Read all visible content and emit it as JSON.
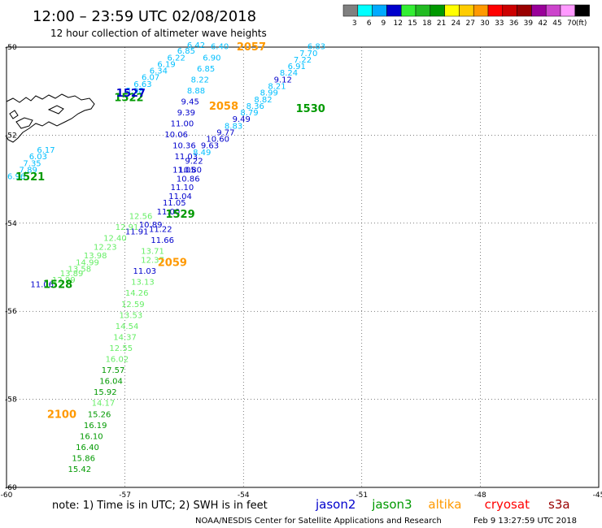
{
  "header": {
    "title": "12:00 – 23:59 UTC 02/08/2018",
    "subtitle": "12 hour collection of altimeter wave heights"
  },
  "colorbar": {
    "colors": [
      "#808080",
      "#00ffff",
      "#00aaff",
      "#0000cc",
      "#33ee33",
      "#22bb22",
      "#009900",
      "#ffff00",
      "#ffcc00",
      "#ff9900",
      "#ff0000",
      "#cc0000",
      "#990000",
      "#990099",
      "#cc44cc",
      "#ff99ff",
      "#000000"
    ],
    "labels": [
      "3",
      "6",
      "9",
      "12",
      "15",
      "18",
      "21",
      "24",
      "27",
      "30",
      "33",
      "36",
      "39",
      "42",
      "45",
      "70",
      "(ft)"
    ]
  },
  "axes": {
    "x_ticks": [
      -60,
      -57,
      -54,
      -51,
      -48,
      -45
    ],
    "y_ticks": [
      -50,
      -52,
      -54,
      -56,
      -58,
      -60
    ],
    "x_tick_labels": [
      "-60",
      "-57",
      "-54",
      "-51",
      "-48",
      "-45"
    ],
    "y_tick_labels": [
      "-50",
      "-52",
      "-54",
      "-56",
      "-58",
      "-60"
    ]
  },
  "chart_data": {
    "type": "scatter",
    "xlim": [
      -60,
      -45
    ],
    "ylim": [
      -60,
      -50
    ],
    "grid": true,
    "series": [
      {
        "name": "jason2",
        "color": "#0000cc"
      },
      {
        "name": "jason3",
        "color": "#009900"
      },
      {
        "name": "altika",
        "color": "#ff9900"
      },
      {
        "name": "cryosat",
        "color": "#ff0000"
      },
      {
        "name": "s3a",
        "color": "#990000"
      }
    ],
    "passes": [
      {
        "id": "1521",
        "color": "#009900",
        "lon": -59.4,
        "lat": -52.95
      },
      {
        "id": "1522",
        "color": "#009900",
        "lon": -56.9,
        "lat": -51.15
      },
      {
        "id": "1527",
        "color": "#0000cc",
        "lon": -56.85,
        "lat": -51.05
      },
      {
        "id": "1528",
        "color": "#009900",
        "lon": -58.7,
        "lat": -55.4
      },
      {
        "id": "1529",
        "color": "#009900",
        "lon": -55.6,
        "lat": -53.8
      },
      {
        "id": "1530",
        "color": "#009900",
        "lon": -52.3,
        "lat": -51.4
      },
      {
        "id": "2057",
        "color": "#ff9900",
        "lon": -53.8,
        "lat": -50.0
      },
      {
        "id": "2058",
        "color": "#ff9900",
        "lon": -54.5,
        "lat": -51.35
      },
      {
        "id": "2059",
        "color": "#ff9900",
        "lon": -55.8,
        "lat": -54.9
      },
      {
        "id": "2100",
        "color": "#ff9900",
        "lon": -58.6,
        "lat": -58.35
      }
    ],
    "points": [
      {
        "lon": -54.6,
        "lat": -50.05,
        "v": "6.40",
        "c": "#00bfff"
      },
      {
        "lon": -54.8,
        "lat": -50.3,
        "v": "6.90",
        "c": "#00bfff"
      },
      {
        "lon": -54.95,
        "lat": -50.55,
        "v": "6.85",
        "c": "#00bfff"
      },
      {
        "lon": -55.1,
        "lat": -50.8,
        "v": "8.22",
        "c": "#00bfff"
      },
      {
        "lon": -55.2,
        "lat": -51.05,
        "v": "8.88",
        "c": "#00bfff"
      },
      {
        "lon": -55.35,
        "lat": -51.3,
        "v": "9.45",
        "c": "#0000cc"
      },
      {
        "lon": -55.45,
        "lat": -51.55,
        "v": "9.39",
        "c": "#0000cc"
      },
      {
        "lon": -55.55,
        "lat": -51.8,
        "v": "11.00",
        "c": "#0000cc"
      },
      {
        "lon": -55.7,
        "lat": -52.05,
        "v": "10.06",
        "c": "#0000cc"
      },
      {
        "lon": -55.5,
        "lat": -52.3,
        "v": "10.36",
        "c": "#0000cc"
      },
      {
        "lon": -55.45,
        "lat": -52.55,
        "v": "11.03",
        "c": "#0000cc"
      },
      {
        "lon": -55.5,
        "lat": -52.85,
        "v": "11.05",
        "c": "#0000cc"
      },
      {
        "lon": -55.4,
        "lat": -53.05,
        "v": "10.86",
        "c": "#0000cc"
      },
      {
        "lon": -55.55,
        "lat": -53.25,
        "v": "11.10",
        "c": "#0000cc"
      },
      {
        "lon": -55.6,
        "lat": -53.45,
        "v": "11.04",
        "c": "#0000cc"
      },
      {
        "lon": -55.75,
        "lat": -53.6,
        "v": "11.05",
        "c": "#0000cc"
      },
      {
        "lon": -55.9,
        "lat": -53.8,
        "v": "11.00",
        "c": "#0000cc"
      },
      {
        "lon": -56.35,
        "lat": -54.1,
        "v": "10.89",
        "c": "#0000cc"
      },
      {
        "lon": -56.1,
        "lat": -54.2,
        "v": "11.22",
        "c": "#0000cc"
      },
      {
        "lon": -56.7,
        "lat": -54.25,
        "v": "11.91",
        "c": "#0000cc"
      },
      {
        "lon": -56.05,
        "lat": -54.45,
        "v": "11.66",
        "c": "#0000cc"
      },
      {
        "lon": -56.3,
        "lat": -54.7,
        "v": "13.71",
        "c": "#66ee66"
      },
      {
        "lon": -56.3,
        "lat": -54.9,
        "v": "12.37",
        "c": "#66ee66"
      },
      {
        "lon": -56.5,
        "lat": -55.15,
        "v": "11.03",
        "c": "#0000cc"
      },
      {
        "lon": -56.55,
        "lat": -55.4,
        "v": "13.13",
        "c": "#66ee66"
      },
      {
        "lon": -56.7,
        "lat": -55.65,
        "v": "14.26",
        "c": "#66ee66"
      },
      {
        "lon": -56.8,
        "lat": -55.9,
        "v": "12.59",
        "c": "#66ee66"
      },
      {
        "lon": -56.85,
        "lat": -56.15,
        "v": "13.53",
        "c": "#66ee66"
      },
      {
        "lon": -56.95,
        "lat": -56.4,
        "v": "14.54",
        "c": "#66ee66"
      },
      {
        "lon": -57.0,
        "lat": -56.65,
        "v": "14.37",
        "c": "#66ee66"
      },
      {
        "lon": -57.1,
        "lat": -56.9,
        "v": "12.55",
        "c": "#66ee66"
      },
      {
        "lon": -57.2,
        "lat": -57.15,
        "v": "16.02",
        "c": "#66ee66"
      },
      {
        "lon": -57.3,
        "lat": -57.4,
        "v": "17.57",
        "c": "#009900"
      },
      {
        "lon": -57.35,
        "lat": -57.65,
        "v": "16.04",
        "c": "#009900"
      },
      {
        "lon": -57.5,
        "lat": -57.9,
        "v": "15.92",
        "c": "#009900"
      },
      {
        "lon": -57.55,
        "lat": -58.15,
        "v": "14.17",
        "c": "#66ee66"
      },
      {
        "lon": -57.65,
        "lat": -58.4,
        "v": "15.26",
        "c": "#009900"
      },
      {
        "lon": -57.75,
        "lat": -58.65,
        "v": "16.19",
        "c": "#009900"
      },
      {
        "lon": -57.85,
        "lat": -58.9,
        "v": "16.10",
        "c": "#009900"
      },
      {
        "lon": -57.95,
        "lat": -59.15,
        "v": "16.40",
        "c": "#009900"
      },
      {
        "lon": -58.05,
        "lat": -59.4,
        "v": "15.86",
        "c": "#009900"
      },
      {
        "lon": -58.15,
        "lat": -59.65,
        "v": "15.42",
        "c": "#009900"
      },
      {
        "lon": -52.15,
        "lat": -50.05,
        "v": "6.83",
        "c": "#00bfff"
      },
      {
        "lon": -52.35,
        "lat": -50.2,
        "v": "7.70",
        "c": "#00bfff"
      },
      {
        "lon": -52.5,
        "lat": -50.35,
        "v": "7.22",
        "c": "#00bfff"
      },
      {
        "lon": -52.65,
        "lat": -50.5,
        "v": "6.91",
        "c": "#00bfff"
      },
      {
        "lon": -52.85,
        "lat": -50.65,
        "v": "8.24",
        "c": "#00bfff"
      },
      {
        "lon": -53.0,
        "lat": -50.8,
        "v": "9.12",
        "c": "#0000cc"
      },
      {
        "lon": -53.15,
        "lat": -50.95,
        "v": "8.21",
        "c": "#00bfff"
      },
      {
        "lon": -53.35,
        "lat": -51.1,
        "v": "8.99",
        "c": "#00bfff"
      },
      {
        "lon": -53.5,
        "lat": -51.25,
        "v": "8.82",
        "c": "#00bfff"
      },
      {
        "lon": -53.7,
        "lat": -51.4,
        "v": "8.36",
        "c": "#00bfff"
      },
      {
        "lon": -53.85,
        "lat": -51.55,
        "v": "8.79",
        "c": "#00bfff"
      },
      {
        "lon": -54.05,
        "lat": -51.7,
        "v": "9.49",
        "c": "#0000cc"
      },
      {
        "lon": -54.25,
        "lat": -51.85,
        "v": "8.83",
        "c": "#00bfff"
      },
      {
        "lon": -54.45,
        "lat": -52.0,
        "v": "9.77",
        "c": "#0000cc"
      },
      {
        "lon": -54.65,
        "lat": -52.15,
        "v": "10.60",
        "c": "#0000cc"
      },
      {
        "lon": -54.85,
        "lat": -52.3,
        "v": "9.63",
        "c": "#0000cc"
      },
      {
        "lon": -55.05,
        "lat": -52.45,
        "v": "8.49",
        "c": "#00bfff"
      },
      {
        "lon": -55.25,
        "lat": -52.65,
        "v": "9.22",
        "c": "#0000cc"
      },
      {
        "lon": -55.35,
        "lat": -52.85,
        "v": "10.80",
        "c": "#0000cc"
      },
      {
        "lon": -56.6,
        "lat": -53.9,
        "v": "12.56",
        "c": "#66ee66"
      },
      {
        "lon": -56.95,
        "lat": -54.15,
        "v": "12.91",
        "c": "#66ee66"
      },
      {
        "lon": -57.25,
        "lat": -54.4,
        "v": "12.40",
        "c": "#66ee66"
      },
      {
        "lon": -57.5,
        "lat": -54.6,
        "v": "12.23",
        "c": "#66ee66"
      },
      {
        "lon": -57.75,
        "lat": -54.8,
        "v": "13.98",
        "c": "#66ee66"
      },
      {
        "lon": -57.95,
        "lat": -54.95,
        "v": "14.99",
        "c": "#66ee66"
      },
      {
        "lon": -58.15,
        "lat": -55.1,
        "v": "13.58",
        "c": "#66ee66"
      },
      {
        "lon": -58.35,
        "lat": -55.2,
        "v": "13.89",
        "c": "#66ee66"
      },
      {
        "lon": -58.55,
        "lat": -55.35,
        "v": "12.99",
        "c": "#66ee66"
      },
      {
        "lon": -59.1,
        "lat": -55.45,
        "v": "11.06",
        "c": "#0000cc"
      },
      {
        "lon": -59.0,
        "lat": -52.4,
        "v": "6.17",
        "c": "#00bfff"
      },
      {
        "lon": -59.2,
        "lat": -52.55,
        "v": "6.03",
        "c": "#00bfff"
      },
      {
        "lon": -59.35,
        "lat": -52.7,
        "v": "7.35",
        "c": "#00bfff"
      },
      {
        "lon": -59.45,
        "lat": -52.85,
        "v": "7.89",
        "c": "#00bfff"
      },
      {
        "lon": -59.75,
        "lat": -53.0,
        "v": "6.96",
        "c": "#00bfff"
      },
      {
        "lon": -55.2,
        "lat": -50.02,
        "v": "6.42",
        "c": "#00bfff"
      },
      {
        "lon": -55.45,
        "lat": -50.15,
        "v": "6.85",
        "c": "#00bfff"
      },
      {
        "lon": -55.7,
        "lat": -50.3,
        "v": "6.22",
        "c": "#00bfff"
      },
      {
        "lon": -55.95,
        "lat": -50.45,
        "v": "6.19",
        "c": "#00bfff"
      },
      {
        "lon": -56.15,
        "lat": -50.6,
        "v": "6.34",
        "c": "#00bfff"
      },
      {
        "lon": -56.35,
        "lat": -50.75,
        "v": "6.07",
        "c": "#00bfff"
      },
      {
        "lon": -56.55,
        "lat": -50.9,
        "v": "6.63",
        "c": "#00bfff"
      },
      {
        "lon": -56.75,
        "lat": -51.05,
        "v": "5.98",
        "c": "#00bfff"
      }
    ]
  },
  "footer": {
    "note": "note:  1) Time is in UTC; 2) SWH is in feet",
    "satellites": [
      {
        "label": "jason2",
        "color": "#0000cc"
      },
      {
        "label": "jason3",
        "color": "#009900"
      },
      {
        "label": "altika",
        "color": "#ff9900"
      },
      {
        "label": "cryosat",
        "color": "#ff0000"
      },
      {
        "label": "s3a",
        "color": "#990000"
      }
    ],
    "credit": "NOAA/NESDIS Center for Satellite Applications and Research",
    "timestamp": "Feb  9 13:27:59 UTC 2018"
  }
}
